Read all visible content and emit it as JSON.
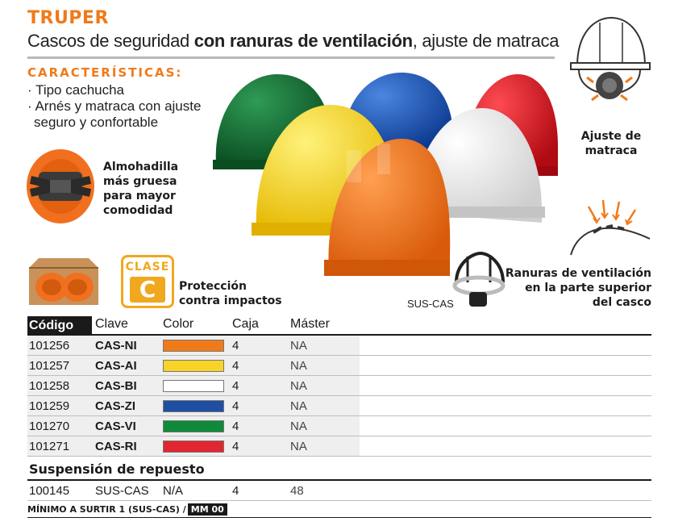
{
  "brand": "TRUPER",
  "title": {
    "part1": "Cascos de seguridad ",
    "bold": "con ranuras de ventilación",
    "part2": ", ajuste de matraca"
  },
  "features": {
    "title": "CARACTERÍSTICAS:",
    "items": [
      "· Tipo cachucha",
      "· Arnés y matraca con ajuste",
      "  seguro y confortable"
    ]
  },
  "callouts": {
    "padding": [
      "Almohadilla",
      "más gruesa",
      "para mayor",
      "comodidad"
    ],
    "ratchet": [
      "Ajuste de",
      "matraca"
    ],
    "vents": [
      "Ranuras de ventilación",
      "en la parte superior",
      "del casco"
    ],
    "protection": [
      "Protección",
      "contra impactos"
    ]
  },
  "clase": {
    "label": "CLASE",
    "letter": "C"
  },
  "suspension_label": "SUS-CAS",
  "colors": {
    "accent": "#f07a1a",
    "helmet_green": "#0e6b2e",
    "helmet_blue": "#1450b4",
    "helmet_red": "#e0141e",
    "helmet_yellow": "#f8d21c",
    "helmet_white": "#f4f4f4",
    "helmet_orange": "#f07020"
  },
  "table": {
    "headers": [
      "Código",
      "Clave",
      "Color",
      "Caja",
      "Máster"
    ],
    "rows": [
      {
        "codigo": "101256",
        "clave": "CAS-NI",
        "color": "#f07a1a",
        "caja": "4",
        "master": "NA"
      },
      {
        "codigo": "101257",
        "clave": "CAS-AI",
        "color": "#fad329",
        "caja": "4",
        "master": "NA"
      },
      {
        "codigo": "101258",
        "clave": "CAS-BI",
        "color": "#ffffff",
        "caja": "4",
        "master": "NA"
      },
      {
        "codigo": "101259",
        "clave": "CAS-ZI",
        "color": "#1f4fa3",
        "caja": "4",
        "master": "NA"
      },
      {
        "codigo": "101270",
        "clave": "CAS-VI",
        "color": "#0f8a3a",
        "caja": "4",
        "master": "NA"
      },
      {
        "codigo": "101271",
        "clave": "CAS-RI",
        "color": "#e02630",
        "caja": "4",
        "master": "NA"
      }
    ],
    "section_title": "Suspensión de repuesto",
    "spare": {
      "codigo": "100145",
      "clave": "SUS-CAS",
      "color": "N/A",
      "caja": "4",
      "master": "48"
    }
  },
  "footer": {
    "text": "MÍNIMO A SURTIR 1 (SUS-CAS) /",
    "badge": "MM 00"
  }
}
